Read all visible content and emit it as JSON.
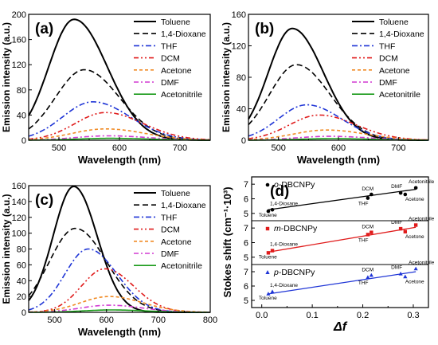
{
  "colors": {
    "Toluene": "#000000",
    "1,4-Dioxane": "#000000",
    "THF": "#1f35d6",
    "DCM": "#e01b1b",
    "Acetone": "#f08a24",
    "DMF": "#d23ad2",
    "Acetonitrile": "#1a9b1a"
  },
  "shared": {
    "ylabel": "Emission intensity (a.u.)",
    "xlabel": "Wavelength (nm)",
    "legend": [
      "Toluene",
      "1,4-Dioxane",
      "THF",
      "DCM",
      "Acetone",
      "DMF",
      "Acetonitrile"
    ]
  },
  "chart_data": [
    {
      "panel": "(a)",
      "type": "line",
      "xlabel": "Wavelength (nm)",
      "ylabel": "Emission intensity (a.u.)",
      "xlim": [
        450,
        750
      ],
      "ylim": [
        0,
        200
      ],
      "xticks": [
        500,
        600,
        700
      ],
      "yticks": [
        0,
        40,
        80,
        120,
        160,
        200
      ],
      "series": [
        {
          "name": "Toluene",
          "peak_x": 525,
          "peak_y": 192,
          "width_left": 42,
          "width_right": 55
        },
        {
          "name": "1,4-Dioxane",
          "peak_x": 542,
          "peak_y": 112,
          "width_left": 48,
          "width_right": 58
        },
        {
          "name": "THF",
          "peak_x": 556,
          "peak_y": 61,
          "width_left": 50,
          "width_right": 62
        },
        {
          "name": "DCM",
          "peak_x": 577,
          "peak_y": 44,
          "width_left": 50,
          "width_right": 62
        },
        {
          "name": "Acetone",
          "peak_x": 577,
          "peak_y": 18,
          "width_left": 55,
          "width_right": 65
        },
        {
          "name": "DMF",
          "peak_x": 582,
          "peak_y": 7,
          "width_left": 55,
          "width_right": 65
        },
        {
          "name": "Acetonitrile",
          "peak_x": 585,
          "peak_y": 3,
          "width_left": 55,
          "width_right": 65
        }
      ]
    },
    {
      "panel": "(b)",
      "type": "line",
      "xlabel": "Wavelength (nm)",
      "ylabel": "Emission intensity (a.u.)",
      "xlim": [
        450,
        750
      ],
      "ylim": [
        0,
        160
      ],
      "xticks": [
        500,
        600,
        700
      ],
      "yticks": [
        0,
        40,
        80,
        120,
        160
      ],
      "series": [
        {
          "name": "Toluene",
          "peak_x": 523,
          "peak_y": 142,
          "width_left": 40,
          "width_right": 52
        },
        {
          "name": "1,4-Dioxane",
          "peak_x": 530,
          "peak_y": 96,
          "width_left": 45,
          "width_right": 56
        },
        {
          "name": "THF",
          "peak_x": 547,
          "peak_y": 45,
          "width_left": 47,
          "width_right": 58
        },
        {
          "name": "DCM",
          "peak_x": 568,
          "peak_y": 32,
          "width_left": 50,
          "width_right": 62
        },
        {
          "name": "Acetone",
          "peak_x": 580,
          "peak_y": 13,
          "width_left": 55,
          "width_right": 65
        },
        {
          "name": "DMF",
          "peak_x": 585,
          "peak_y": 5,
          "width_left": 55,
          "width_right": 65
        },
        {
          "name": "Acetonitrile",
          "peak_x": 590,
          "peak_y": 2,
          "width_left": 55,
          "width_right": 65
        }
      ]
    },
    {
      "panel": "(c)",
      "type": "line",
      "xlabel": "Wavelength (nm)",
      "ylabel": "Emission intensity (a.u.)",
      "xlim": [
        450,
        800
      ],
      "ylim": [
        0,
        160
      ],
      "xticks": [
        500,
        600,
        700,
        800
      ],
      "yticks": [
        0,
        20,
        40,
        60,
        80,
        100,
        120,
        140,
        160
      ],
      "series": [
        {
          "name": "Toluene",
          "peak_x": 537,
          "peak_y": 159,
          "width_left": 40,
          "width_right": 45
        },
        {
          "name": "1,4-Dioxane",
          "peak_x": 540,
          "peak_y": 106,
          "width_left": 50,
          "width_right": 60
        },
        {
          "name": "THF",
          "peak_x": 565,
          "peak_y": 80,
          "width_left": 45,
          "width_right": 55
        },
        {
          "name": "DCM",
          "peak_x": 597,
          "peak_y": 55,
          "width_left": 45,
          "width_right": 55
        },
        {
          "name": "Acetone",
          "peak_x": 605,
          "peak_y": 20,
          "width_left": 55,
          "width_right": 65
        },
        {
          "name": "DMF",
          "peak_x": 605,
          "peak_y": 9,
          "width_left": 55,
          "width_right": 65
        },
        {
          "name": "Acetonitrile",
          "peak_x": 610,
          "peak_y": 3,
          "width_left": 55,
          "width_right": 65
        }
      ]
    },
    {
      "panel": "(d)",
      "type": "scatter",
      "xlabel": "Δf",
      "ylabel": "Stokes shift (cm⁻¹·10³)",
      "xlim": [
        -0.02,
        0.33
      ],
      "xticks": [
        0.0,
        0.1,
        0.2,
        0.3
      ],
      "subplots": [
        {
          "name": "o-DBCNPy",
          "prefix": "o",
          "suffix": "-DBCNPy",
          "marker": "circle",
          "color": "#000000",
          "ylim": [
            4.5,
            7.5
          ],
          "yticks": [
            5,
            6,
            7
          ],
          "points": [
            {
              "label": "Toluene",
              "x": 0.013,
              "y": 5.15
            },
            {
              "label": "1,4-Dioxane",
              "x": 0.021,
              "y": 5.25
            },
            {
              "label": "THF",
              "x": 0.21,
              "y": 6.05
            },
            {
              "label": "DCM",
              "x": 0.217,
              "y": 6.3
            },
            {
              "label": "DMF",
              "x": 0.275,
              "y": 6.4
            },
            {
              "label": "Acetone",
              "x": 0.284,
              "y": 6.3
            },
            {
              "label": "Acetonitrile",
              "x": 0.305,
              "y": 6.75
            }
          ],
          "fit": [
            [
              0.013,
              5.25
            ],
            [
              0.305,
              6.65
            ]
          ]
        },
        {
          "name": "m-DBCNPy",
          "prefix": "m",
          "suffix": "-DBCNPy",
          "marker": "square",
          "color": "#e01b1b",
          "ylim": [
            4.5,
            7.5
          ],
          "yticks": [
            5,
            6,
            7
          ],
          "points": [
            {
              "label": "Toluene",
              "x": 0.013,
              "y": 5.3
            },
            {
              "label": "1,4-Dioxane",
              "x": 0.021,
              "y": 5.45
            },
            {
              "label": "THF",
              "x": 0.21,
              "y": 6.55
            },
            {
              "label": "DCM",
              "x": 0.217,
              "y": 6.7
            },
            {
              "label": "DMF",
              "x": 0.275,
              "y": 6.95
            },
            {
              "label": "Acetone",
              "x": 0.284,
              "y": 6.75
            },
            {
              "label": "Acetonitrile",
              "x": 0.305,
              "y": 7.2
            }
          ],
          "fit": [
            [
              0.013,
              5.35
            ],
            [
              0.305,
              7.05
            ]
          ]
        },
        {
          "name": "p-DBCNPy",
          "prefix": "p",
          "suffix": "-DBCNPy",
          "marker": "triangle",
          "color": "#1f35d6",
          "ylim": [
            4.5,
            7.5
          ],
          "yticks": [
            5,
            6,
            7
          ],
          "points": [
            {
              "label": "Toluene",
              "x": 0.013,
              "y": 5.45
            },
            {
              "label": "1,4-Dioxane",
              "x": 0.021,
              "y": 5.6
            },
            {
              "label": "THF",
              "x": 0.21,
              "y": 6.6
            },
            {
              "label": "DCM",
              "x": 0.217,
              "y": 6.75
            },
            {
              "label": "DMF",
              "x": 0.275,
              "y": 6.85
            },
            {
              "label": "Acetone",
              "x": 0.284,
              "y": 6.65
            },
            {
              "label": "Acetonitrile",
              "x": 0.305,
              "y": 7.2
            }
          ],
          "fit": [
            [
              0.013,
              5.45
            ],
            [
              0.305,
              7.0
            ]
          ]
        }
      ]
    }
  ]
}
